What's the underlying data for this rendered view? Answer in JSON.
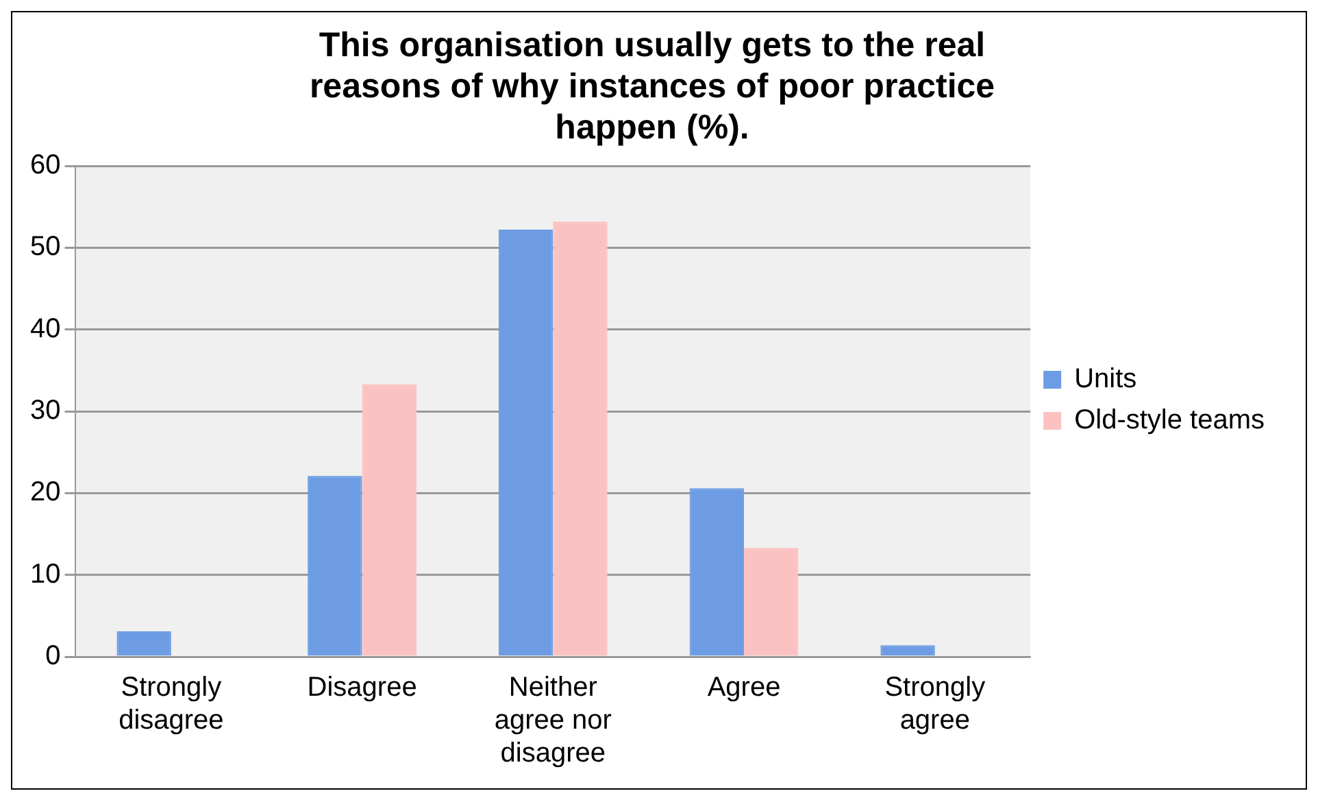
{
  "chart_data": {
    "type": "bar",
    "title": "This organisation usually gets to the real reasons of why instances of poor practice happen (%).",
    "categories": [
      "Strongly disagree",
      "Disagree",
      "Neither agree nor disagree",
      "Agree",
      "Strongly agree"
    ],
    "series": [
      {
        "name": "Units",
        "color": "#6d9ce4",
        "values": [
          3.1,
          22.1,
          52.2,
          20.6,
          1.4
        ]
      },
      {
        "name": "Old-style teams",
        "color": "#fcc2c2",
        "values": [
          0,
          33.3,
          53.2,
          13.3,
          0
        ]
      }
    ],
    "ylim": [
      0,
      60
    ],
    "yticks": [
      0,
      10,
      20,
      30,
      40,
      50,
      60
    ],
    "grid": "y",
    "legend": "right"
  }
}
